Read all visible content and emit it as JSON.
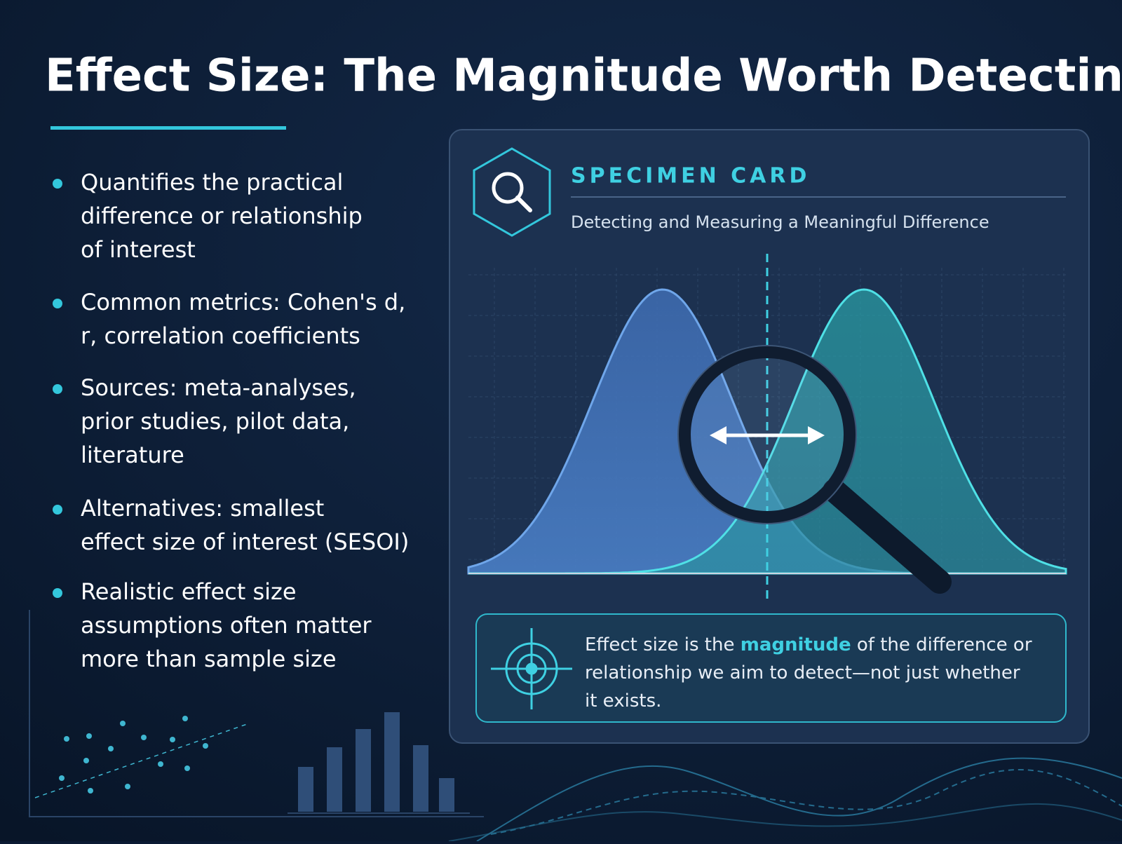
{
  "title": "Effect Size: The Magnitude Worth Detecting",
  "bullets": [
    {
      "lines": [
        "Quantifies the practical",
        "difference or relationship",
        "of interest"
      ]
    },
    {
      "lines": [
        "Common metrics: Cohen's d,",
        "r, correlation coefficients"
      ]
    },
    {
      "lines": [
        "Sources: meta-analyses,",
        "prior studies, pilot data,",
        "literature"
      ]
    },
    {
      "lines": [
        "Alternatives: smallest",
        "effect size of interest (SESOI)"
      ]
    },
    {
      "lines": [
        "Realistic effect size",
        "assumptions often matter",
        "more than sample size"
      ]
    }
  ],
  "card": {
    "label": "SPECIMEN CARD",
    "subtitle": "Detecting and Measuring a Meaningful Difference",
    "callout": {
      "lines": [
        [
          {
            "text": "Effect size is the "
          },
          {
            "text": "magnitude",
            "highlight": true
          },
          {
            "text": " of the difference or"
          }
        ],
        [
          {
            "text": "relationship we aim to detect—not just whether"
          }
        ],
        [
          {
            "text": "it exists."
          }
        ]
      ]
    }
  }
}
